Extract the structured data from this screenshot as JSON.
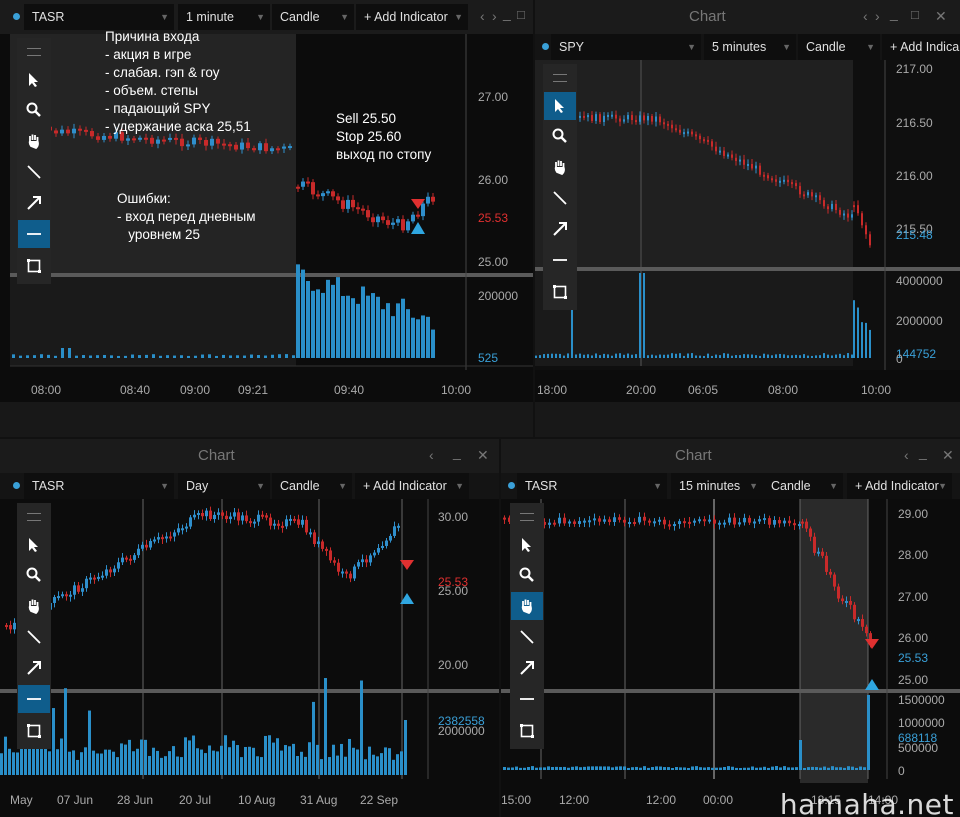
{
  "colors": {
    "up": "#2f8fcc",
    "down": "#c82a2a",
    "volume": "#2a8fc9",
    "accent": "#0f5d8c",
    "bg": "#0c0c0c"
  },
  "toolbar_icons": [
    "grip-icon",
    "pointer-icon",
    "zoom-icon",
    "hand-icon",
    "line-icon",
    "arrow-icon",
    "horizontal-line-icon",
    "rectangle-icon"
  ],
  "panels": {
    "tl": {
      "symbol": "TASR",
      "interval": "1 minute",
      "chart_type": "Candle",
      "add_indicator": "+ Add Indicator",
      "window_controls": [
        "‹",
        "›",
        "_",
        "□"
      ],
      "notes": {
        "reason": [
          "Причина входа",
          "- акция в игре",
          "- слабая. гэп & гоу",
          "- объем. степы",
          "- падающий SPY",
          "- удержание аска  25,51"
        ],
        "trade": [
          "Sell 25.50",
          "Stop 25.60",
          "выход по стопу"
        ],
        "errors": [
          "Ошибки:",
          "- вход перед дневным",
          "   уровнем 25"
        ]
      },
      "price_ticks": [
        "27.00",
        "26.00",
        "25.53",
        "25.00"
      ],
      "volume_ticks": [
        "200000",
        "525"
      ],
      "time_ticks": [
        "08:00",
        "08:40",
        "09:00",
        "09:21",
        "09:40",
        "10:00"
      ]
    },
    "tr": {
      "title": "Chart",
      "symbol": "SPY",
      "interval": "5 minutes",
      "chart_type": "Candle",
      "add_indicator": "+ Add Indica",
      "window_controls": [
        "‹",
        "›",
        "_",
        "□",
        "✕"
      ],
      "price_ticks": [
        "217.00",
        "216.50",
        "216.00",
        "215.50",
        "215.48"
      ],
      "volume_ticks": [
        "4000000",
        "2000000",
        "144752",
        "0"
      ],
      "time_ticks": [
        "18:00",
        "20:00",
        "06:05",
        "08:00",
        "10:00"
      ]
    },
    "bl": {
      "title": "Chart",
      "symbol": "TASR",
      "interval": "Day",
      "chart_type": "Candle",
      "add_indicator": "+ Add Indicator",
      "window_controls": [
        "‹",
        "_",
        "✕"
      ],
      "price_ticks": [
        "30.00",
        "25.53",
        "25.00",
        "20.00"
      ],
      "volume_ticks": [
        "2382558",
        "2000000"
      ],
      "time_ticks": [
        "May",
        "07 Jun",
        "28 Jun",
        "20 Jul",
        "10 Aug",
        "31 Aug",
        "22 Sep"
      ]
    },
    "br": {
      "title": "Chart",
      "symbol": "TASR",
      "interval": "15 minutes",
      "chart_type": "Candle",
      "add_indicator": "+ Add Indicator",
      "window_controls": [
        "‹",
        "_",
        "✕"
      ],
      "price_ticks": [
        "29.00",
        "28.00",
        "27.00",
        "26.00",
        "25.53",
        "25.00"
      ],
      "volume_ticks": [
        "1500000",
        "1000000",
        "688118",
        "500000",
        "0"
      ],
      "time_ticks": [
        "15:00",
        "12:00",
        "12:00",
        "00:00",
        "18:15",
        "14:00"
      ]
    }
  },
  "watermark": "hamaha.net"
}
